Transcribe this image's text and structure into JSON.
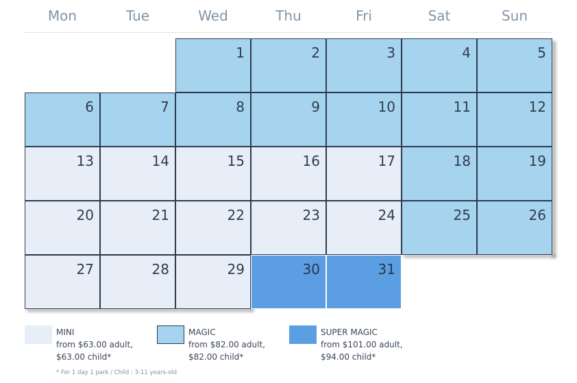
{
  "calendar": {
    "day_names": [
      "Mon",
      "Tue",
      "Wed",
      "Thu",
      "Fri",
      "Sat",
      "Sun"
    ],
    "weeks": [
      [
        null,
        null,
        {
          "day": "1",
          "tier": "magic"
        },
        {
          "day": "2",
          "tier": "magic"
        },
        {
          "day": "3",
          "tier": "magic"
        },
        {
          "day": "4",
          "tier": "magic"
        },
        {
          "day": "5",
          "tier": "magic"
        }
      ],
      [
        {
          "day": "6",
          "tier": "magic"
        },
        {
          "day": "7",
          "tier": "magic"
        },
        {
          "day": "8",
          "tier": "magic"
        },
        {
          "day": "9",
          "tier": "magic"
        },
        {
          "day": "10",
          "tier": "magic"
        },
        {
          "day": "11",
          "tier": "magic"
        },
        {
          "day": "12",
          "tier": "magic"
        }
      ],
      [
        {
          "day": "13",
          "tier": "mini"
        },
        {
          "day": "14",
          "tier": "mini"
        },
        {
          "day": "15",
          "tier": "mini"
        },
        {
          "day": "16",
          "tier": "mini"
        },
        {
          "day": "17",
          "tier": "mini"
        },
        {
          "day": "18",
          "tier": "magic"
        },
        {
          "day": "19",
          "tier": "magic"
        }
      ],
      [
        {
          "day": "20",
          "tier": "mini"
        },
        {
          "day": "21",
          "tier": "mini"
        },
        {
          "day": "22",
          "tier": "mini"
        },
        {
          "day": "23",
          "tier": "mini"
        },
        {
          "day": "24",
          "tier": "mini"
        },
        {
          "day": "25",
          "tier": "magic"
        },
        {
          "day": "26",
          "tier": "magic"
        }
      ],
      [
        {
          "day": "27",
          "tier": "mini"
        },
        {
          "day": "28",
          "tier": "mini"
        },
        {
          "day": "29",
          "tier": "mini"
        },
        {
          "day": "30",
          "tier": "super"
        },
        {
          "day": "31",
          "tier": "super"
        },
        null,
        null
      ]
    ]
  },
  "legend": [
    {
      "tier": "mini",
      "name": "MINI",
      "adult": "from $63.00 adult,",
      "child": "$63.00 child*",
      "color": "#e8eef7"
    },
    {
      "tier": "magic",
      "name": "MAGIC",
      "adult": "from $82.00 adult,",
      "child": "$82.00 child*",
      "color": "#a6d4ee"
    },
    {
      "tier": "super",
      "name": "SUPER MAGIC",
      "adult": "from $101.00 adult,",
      "child": "$94.00 child*",
      "color": "#5c9ee2"
    }
  ],
  "footnote": "* For 1 day 1 park / Child : 3-11 years-old"
}
